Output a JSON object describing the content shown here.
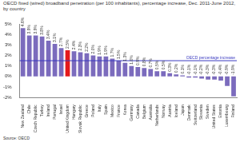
{
  "chart_data": {
    "type": "bar",
    "title": "OECD fixed (wired) broadband penetration (per 100 inhabitants),  percentage increase, Dec. 2011-June 2012, by country",
    "source": "Source: OECD",
    "categories": [
      "New Zealand",
      "Chile",
      "Czech Republic",
      "Turkey",
      "Ireland",
      "Portugal",
      "Israel",
      "United Kingdom",
      "Hungary",
      "Slovak Republic",
      "Greece",
      "Poland",
      "Italy",
      "Spain",
      "Mexico",
      "France",
      "Korea",
      "Germany",
      "Canada",
      "Belgium",
      "Australia",
      "Netherlands",
      "Norway",
      "Austria",
      "Iceland",
      "Japan",
      "Denmark",
      "Switzerland",
      "Slovenia",
      "Sweden",
      "United States",
      "Estonia",
      "Luxembourg",
      "Finland"
    ],
    "values": [
      4.6,
      3.9,
      3.9,
      3.8,
      3.4,
      3.1,
      2.7,
      2.5,
      2.4,
      2.3,
      2.2,
      2.0,
      1.9,
      1.9,
      1.7,
      1.5,
      1.3,
      1.0,
      0.9,
      0.8,
      0.7,
      0.5,
      0.5,
      0.3,
      0.2,
      0.1,
      -0.1,
      -0.1,
      -0.2,
      -0.3,
      -0.3,
      -0.4,
      -0.9,
      -1.9
    ],
    "value_labels": [
      "4.6%",
      "3.9%",
      "3.9%",
      "3.8%",
      "3.4%",
      "3.1%",
      "2.7%",
      "2.5%",
      "2.4%",
      "2.3%",
      "2.2%",
      "2.0%",
      "1.9%",
      "1.9%",
      "1.7%",
      "1.5%",
      "1.3%",
      "1.0%",
      "0.9%",
      "0.8%",
      "0.7%",
      "0.5%",
      "0.5%",
      "0.3%",
      "0.2%",
      "0.1%",
      "-0.1%",
      "-0.1%",
      "-0.2%",
      "-0.3%",
      "-0.3%",
      "-0.4%",
      "-0.9%",
      "-1.9%"
    ],
    "colors": [
      "#7b6bbd",
      "#7b6bbd",
      "#7b6bbd",
      "#7b6bbd",
      "#7b6bbd",
      "#7b6bbd",
      "#7b6bbd",
      "#e41a1c",
      "#7b6bbd",
      "#7b6bbd",
      "#7b6bbd",
      "#7b6bbd",
      "#7b6bbd",
      "#7b6bbd",
      "#7b6bbd",
      "#7b6bbd",
      "#7b6bbd",
      "#7b6bbd",
      "#7b6bbd",
      "#7b6bbd",
      "#7b6bbd",
      "#7b6bbd",
      "#7b6bbd",
      "#7b6bbd",
      "#7b6bbd",
      "#7b6bbd",
      "#7b6bbd",
      "#7b6bbd",
      "#7b6bbd",
      "#7b6bbd",
      "#7b6bbd",
      "#7b6bbd",
      "#7b6bbd",
      "#7b6bbd"
    ],
    "annotations": [
      {
        "text": "OECD percentage increase",
        "value": 1.5,
        "color": "#3a3ac0"
      }
    ],
    "ylim": [
      -2,
      5
    ],
    "yticks": [
      {
        "value": -2,
        "label": "-2%"
      },
      {
        "value": -1,
        "label": "-1%"
      },
      {
        "value": 0,
        "label": "0%"
      },
      {
        "value": 1,
        "label": "1%"
      },
      {
        "value": 2,
        "label": "2%"
      },
      {
        "value": 3,
        "label": "3%"
      },
      {
        "value": 4,
        "label": "4%"
      },
      {
        "value": 5,
        "label": "5%"
      }
    ],
    "grid": false,
    "data_labels": true,
    "legend": "none"
  }
}
